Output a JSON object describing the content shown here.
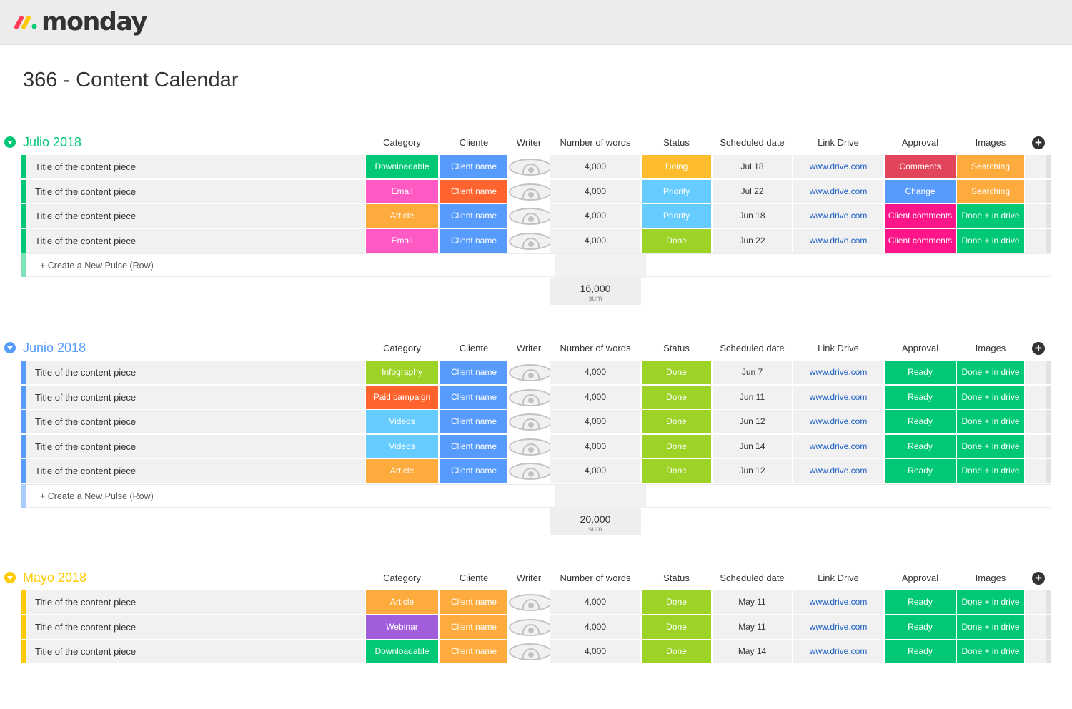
{
  "app": {
    "logo_text": "monday"
  },
  "board": {
    "title": "366 - Content Calendar"
  },
  "columns": [
    "Category",
    "Cliente",
    "Writer",
    "Number of words",
    "Status",
    "Scheduled date",
    "Link Drive",
    "Approval",
    "Images"
  ],
  "colors": {
    "Downloadable": "#00c875",
    "Email": "#ff5ac4",
    "Article": "#fdab3d",
    "Infography": "#9cd326",
    "Paid campaign": "#ff642e",
    "Videos": "#66ccff",
    "Webinar": "#a25ddc",
    "client_blue": "#579bfc",
    "client_orange": "#ff642e",
    "client_amber": "#fdab3d",
    "Doing": "#fdbc2b",
    "Priority": "#66ccff",
    "Done": "#9cd326",
    "Comments": "#e2445c",
    "Change": "#579bfc",
    "Client comments": "#ff158a",
    "Ready": "#00c875",
    "Searching": "#fdab3d",
    "Done + in drive": "#00c875",
    "group_green": "#00c875",
    "group_blue": "#579bfc",
    "group_yellow": "#ffcb00"
  },
  "groups": [
    {
      "title": "Julio 2018",
      "color_key": "group_green",
      "new_row_tint": "#7ee2b8",
      "new_row_label": "+ Create a New Pulse (Row)",
      "sum_value": "16,000",
      "sum_label": "sum",
      "rows": [
        {
          "title": "Title of the content piece",
          "category": "Downloadable",
          "client": "Client name",
          "client_color": "client_blue",
          "words": "4,000",
          "status": "Doing",
          "date": "Jul 18",
          "link": "www.drive.com",
          "approval": "Comments",
          "images": "Searching"
        },
        {
          "title": "Title of the content piece",
          "category": "Email",
          "client": "Client name",
          "client_color": "client_orange",
          "words": "4,000",
          "status": "Priority",
          "date": "Jul 22",
          "link": "www.drive.com",
          "approval": "Change",
          "images": "Searching"
        },
        {
          "title": "Title of the content piece",
          "category": "Article",
          "client": "Client name",
          "client_color": "client_blue",
          "words": "4,000",
          "status": "Priority",
          "date": "Jun 18",
          "link": "www.drive.com",
          "approval": "Client comments",
          "images": "Done + in drive"
        },
        {
          "title": "Title of the content piece",
          "category": "Email",
          "client": "Client name",
          "client_color": "client_blue",
          "words": "4,000",
          "status": "Done",
          "date": "Jun 22",
          "link": "www.drive.com",
          "approval": "Client comments",
          "images": "Done + in drive"
        }
      ]
    },
    {
      "title": "Junio 2018",
      "color_key": "group_blue",
      "new_row_tint": "#a9cbfd",
      "new_row_label": "+ Create a New Pulse (Row)",
      "sum_value": "20,000",
      "sum_label": "sum",
      "rows": [
        {
          "title": "Title of the content piece",
          "category": "Infography",
          "client": "Client name",
          "client_color": "client_blue",
          "words": "4,000",
          "status": "Done",
          "date": "Jun 7",
          "link": "www.drive.com",
          "approval": "Ready",
          "images": "Done + in drive"
        },
        {
          "title": "Title of the content piece",
          "category": "Paid campaign",
          "client": "Client name",
          "client_color": "client_blue",
          "words": "4,000",
          "status": "Done",
          "date": "Jun 11",
          "link": "www.drive.com",
          "approval": "Ready",
          "images": "Done + in drive"
        },
        {
          "title": "Title of the content piece",
          "category": "Videos",
          "client": "Client name",
          "client_color": "client_blue",
          "words": "4,000",
          "status": "Done",
          "date": "Jun 12",
          "link": "www.drive.com",
          "approval": "Ready",
          "images": "Done + in drive"
        },
        {
          "title": "Title of the content piece",
          "category": "Videos",
          "client": "Client name",
          "client_color": "client_blue",
          "words": "4,000",
          "status": "Done",
          "date": "Jun 14",
          "link": "www.drive.com",
          "approval": "Ready",
          "images": "Done + in drive"
        },
        {
          "title": "Title of the content piece",
          "category": "Article",
          "client": "Client name",
          "client_color": "client_blue",
          "words": "4,000",
          "status": "Done",
          "date": "Jun 12",
          "link": "www.drive.com",
          "approval": "Ready",
          "images": "Done + in drive"
        }
      ]
    },
    {
      "title": "Mayo 2018",
      "color_key": "group_yellow",
      "new_row_tint": "#ffe680",
      "new_row_label": "",
      "sum_value": "",
      "sum_label": "",
      "rows": [
        {
          "title": "Title of the content piece",
          "category": "Article",
          "client": "Client name",
          "client_color": "client_amber",
          "words": "4,000",
          "status": "Done",
          "date": "May 11",
          "link": "www.drive.com",
          "approval": "Ready",
          "images": "Done + in drive"
        },
        {
          "title": "Title of the content piece",
          "category": "Webinar",
          "client": "Client name",
          "client_color": "client_amber",
          "words": "4,000",
          "status": "Done",
          "date": "May 11",
          "link": "www.drive.com",
          "approval": "Ready",
          "images": "Done + in drive"
        },
        {
          "title": "Title of the content piece",
          "category": "Downloadable",
          "client": "Client name",
          "client_color": "client_amber",
          "words": "4,000",
          "status": "Done",
          "date": "May 14",
          "link": "www.drive.com",
          "approval": "Ready",
          "images": "Done + in drive"
        }
      ]
    }
  ]
}
